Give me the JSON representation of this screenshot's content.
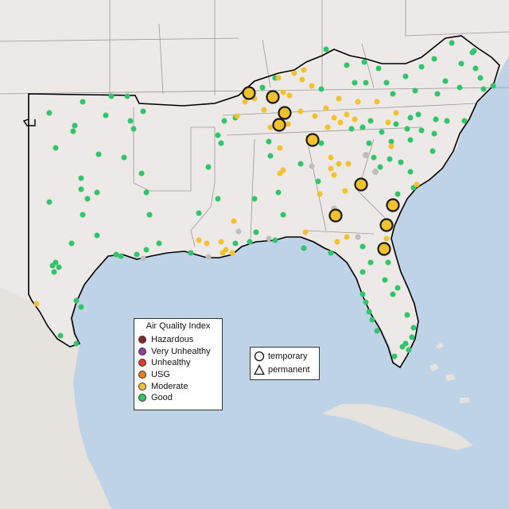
{
  "legend": {
    "title": "Air Quality Index",
    "categories": [
      {
        "label": "Hazardous",
        "color": "#7e2a2a"
      },
      {
        "label": "Very Unhealthy",
        "color": "#8f3f97"
      },
      {
        "label": "Unhealthy",
        "color": "#e53b2c"
      },
      {
        "label": "USG",
        "color": "#e87b1e"
      },
      {
        "label": "Moderate",
        "color": "#f2c22e"
      },
      {
        "label": "Good",
        "color": "#31c46c"
      }
    ]
  },
  "shape_legend": {
    "temporary_label": "temporary",
    "permanent_label": "permanent"
  },
  "colors": {
    "water": "#bfd3e6",
    "land": "#ece9e6",
    "region_border": "#000000",
    "state_lines": "#9a9a9a",
    "highlight_ring": "#1a1a1a"
  }
}
